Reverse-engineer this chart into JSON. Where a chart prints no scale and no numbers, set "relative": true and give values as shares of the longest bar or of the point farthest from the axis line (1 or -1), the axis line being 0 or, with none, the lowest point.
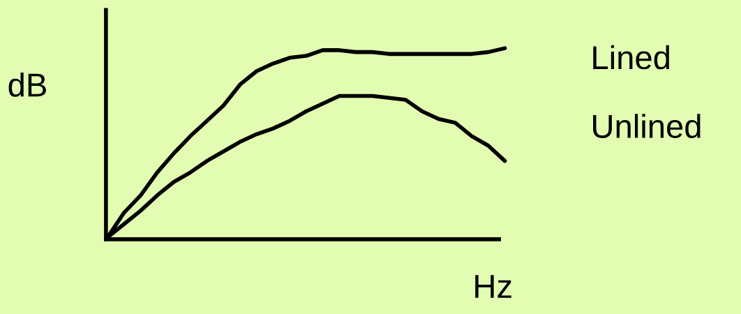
{
  "chart_data": {
    "type": "line",
    "relative": true,
    "xlabel": "Hz",
    "ylabel": "dB",
    "legend": false,
    "grid": false,
    "categories": [
      null,
      null,
      null,
      null,
      null,
      null,
      null,
      null,
      null,
      null,
      null,
      null,
      null,
      null,
      null,
      null,
      null,
      null,
      null,
      null,
      null,
      null,
      null,
      null,
      null
    ],
    "series": [
      {
        "name": "Lined",
        "color": "#000000",
        "values": [
          0.01,
          0.14,
          0.23,
          0.35,
          0.45,
          0.54,
          0.62,
          0.7,
          0.81,
          0.88,
          0.92,
          0.95,
          0.96,
          0.99,
          0.99,
          0.98,
          0.98,
          0.97,
          0.97,
          0.97,
          0.97,
          0.97,
          0.97,
          0.98,
          1.0
        ]
      },
      {
        "name": "Unlined",
        "color": "#000000",
        "values": [
          0.01,
          0.08,
          0.15,
          0.23,
          0.3,
          0.35,
          0.41,
          0.46,
          0.51,
          0.55,
          0.58,
          0.62,
          0.67,
          0.71,
          0.75,
          0.75,
          0.75,
          0.74,
          0.73,
          0.67,
          0.63,
          0.61,
          0.54,
          0.49,
          0.41
        ]
      }
    ]
  }
}
